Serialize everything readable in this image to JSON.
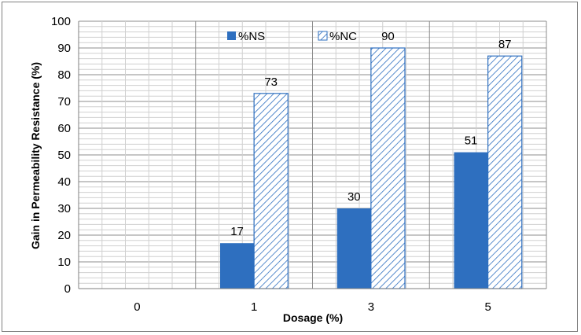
{
  "chart_data": {
    "type": "bar",
    "categories": [
      "0",
      "1",
      "3",
      "5"
    ],
    "series": [
      {
        "name": "%NS",
        "values": [
          0,
          17,
          30,
          51
        ],
        "color": "#2e6fbf",
        "pattern": "solid"
      },
      {
        "name": "%NC",
        "values": [
          0,
          73,
          90,
          87
        ],
        "color": "#2e6fbf",
        "pattern": "diagonal-hatch"
      }
    ],
    "data_labels": [
      [
        null,
        "17",
        "30",
        "51"
      ],
      [
        null,
        "73",
        "90",
        "87"
      ]
    ],
    "title": "",
    "xlabel": "Dosage (%)",
    "ylabel": "Gain in Permeability Resistance (%)",
    "ylim": [
      0,
      100
    ],
    "yticks": [
      0,
      10,
      20,
      30,
      40,
      50,
      60,
      70,
      80,
      90,
      100
    ],
    "grid": "on",
    "legend_placement": "top-center"
  }
}
